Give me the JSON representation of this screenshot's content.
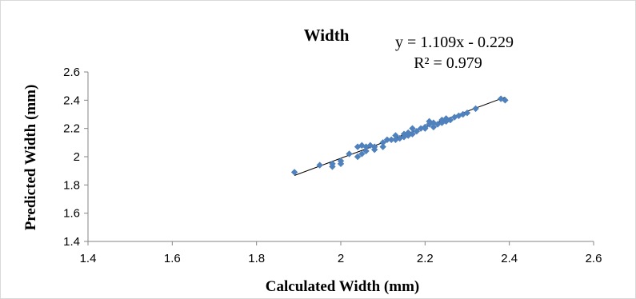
{
  "chart_data": {
    "type": "scatter",
    "title": "Width",
    "xlabel": "Calculated Width (mm)",
    "ylabel": "Predicted Width (mm)",
    "xlim": [
      1.4,
      2.6
    ],
    "ylim": [
      1.4,
      2.6
    ],
    "x_ticks": [
      "1.4",
      "1.6",
      "1.8",
      "2",
      "2.2",
      "2.4",
      "2.6"
    ],
    "y_ticks": [
      "1.4",
      "1.6",
      "1.8",
      "2",
      "2.2",
      "2.4",
      "2.6"
    ],
    "grid": false,
    "marker_color": "#4f81bd",
    "trendline_color": "#000000",
    "trendline": {
      "slope": 1.109,
      "intercept": -0.229,
      "x_range": [
        1.89,
        2.39
      ],
      "equation": "y = 1.109x - 0.229",
      "r_squared": "R² = 0.979"
    },
    "points": [
      [
        1.89,
        1.89
      ],
      [
        1.95,
        1.94
      ],
      [
        1.98,
        1.93
      ],
      [
        1.98,
        1.95
      ],
      [
        2.0,
        1.95
      ],
      [
        2.0,
        1.97
      ],
      [
        2.02,
        2.02
      ],
      [
        2.04,
        2.0
      ],
      [
        2.04,
        2.07
      ],
      [
        2.05,
        2.02
      ],
      [
        2.05,
        2.08
      ],
      [
        2.06,
        2.07
      ],
      [
        2.06,
        2.04
      ],
      [
        2.07,
        2.08
      ],
      [
        2.08,
        2.05
      ],
      [
        2.08,
        2.07
      ],
      [
        2.1,
        2.07
      ],
      [
        2.1,
        2.1
      ],
      [
        2.11,
        2.12
      ],
      [
        2.12,
        2.12
      ],
      [
        2.13,
        2.15
      ],
      [
        2.13,
        2.12
      ],
      [
        2.14,
        2.13
      ],
      [
        2.15,
        2.16
      ],
      [
        2.15,
        2.14
      ],
      [
        2.16,
        2.15
      ],
      [
        2.16,
        2.17
      ],
      [
        2.17,
        2.2
      ],
      [
        2.17,
        2.16
      ],
      [
        2.18,
        2.18
      ],
      [
        2.19,
        2.2
      ],
      [
        2.2,
        2.21
      ],
      [
        2.2,
        2.2
      ],
      [
        2.21,
        2.25
      ],
      [
        2.21,
        2.23
      ],
      [
        2.22,
        2.21
      ],
      [
        2.22,
        2.24
      ],
      [
        2.23,
        2.23
      ],
      [
        2.24,
        2.26
      ],
      [
        2.24,
        2.24
      ],
      [
        2.25,
        2.25
      ],
      [
        2.25,
        2.27
      ],
      [
        2.26,
        2.26
      ],
      [
        2.27,
        2.28
      ],
      [
        2.28,
        2.29
      ],
      [
        2.29,
        2.3
      ],
      [
        2.3,
        2.31
      ],
      [
        2.32,
        2.34
      ],
      [
        2.38,
        2.41
      ],
      [
        2.39,
        2.4
      ]
    ]
  }
}
